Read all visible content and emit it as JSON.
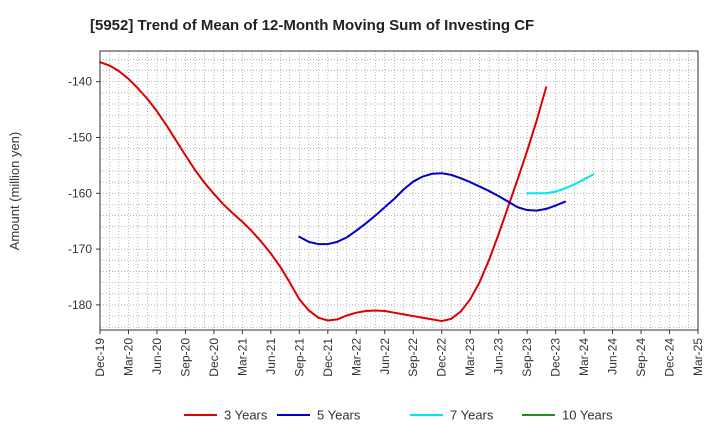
{
  "chart_data": {
    "type": "line",
    "title": "[5952]  Trend of Mean of 12-Month Moving Sum of Investing CF",
    "xlabel": "",
    "ylabel": "Amount (million yen)",
    "ylim": [
      -184.5,
      -134.5
    ],
    "yticks": [
      -140,
      -150,
      -160,
      -170,
      -180
    ],
    "ytick_labels": [
      "-140",
      "-150",
      "-160",
      "-170",
      "-180"
    ],
    "x_tick_labels": [
      "Dec-19",
      "Mar-20",
      "Jun-20",
      "Sep-20",
      "Dec-20",
      "Mar-21",
      "Jun-21",
      "Sep-21",
      "Dec-21",
      "Mar-22",
      "Jun-22",
      "Sep-22",
      "Dec-22",
      "Mar-23",
      "Jun-23",
      "Sep-23",
      "Dec-23",
      "Mar-24",
      "Jun-24",
      "Sep-24",
      "Dec-24",
      "Mar-25"
    ],
    "months_per_tick": 3,
    "grid": true,
    "legend_position": "bottom",
    "series": [
      {
        "name": "3 Years",
        "color": "#dd0000",
        "start_month_index": 0,
        "values": [
          -136.5,
          -137.1,
          -138.1,
          -139.5,
          -141.2,
          -143.1,
          -145.3,
          -147.8,
          -150.5,
          -153.2,
          -155.8,
          -158.1,
          -160.1,
          -162.0,
          -163.6,
          -165.1,
          -166.8,
          -168.7,
          -170.8,
          -173.2,
          -176.0,
          -179.0,
          -181.0,
          -182.3,
          -182.8,
          -182.6,
          -181.9,
          -181.4,
          -181.1,
          -181.0,
          -181.1,
          -181.4,
          -181.7,
          -182.0,
          -182.3,
          -182.6,
          -182.9,
          -182.5,
          -181.2,
          -179.0,
          -175.9,
          -171.9,
          -167.3,
          -162.4,
          -157.5,
          -152.4,
          -147.0,
          -141.0
        ]
      },
      {
        "name": "5 Years",
        "color": "#0000cc",
        "start_month_index": 21,
        "values": [
          -167.8,
          -168.7,
          -169.1,
          -169.1,
          -168.7,
          -167.9,
          -166.7,
          -165.4,
          -164.0,
          -162.5,
          -161.0,
          -159.3,
          -157.9,
          -157.0,
          -156.5,
          -156.4,
          -156.7,
          -157.3,
          -158.0,
          -158.8,
          -159.6,
          -160.5,
          -161.5,
          -162.5,
          -163.0,
          -163.1,
          -162.8,
          -162.2,
          -161.5
        ]
      },
      {
        "name": "7 Years",
        "color": "#00e5ee",
        "start_month_index": 45,
        "values": [
          -160.0,
          -160.0,
          -160.0,
          -159.7,
          -159.1,
          -158.4,
          -157.5,
          -156.6
        ]
      },
      {
        "name": "10 Years",
        "color": "#228b22",
        "start_month_index": 0,
        "values": []
      }
    ]
  }
}
